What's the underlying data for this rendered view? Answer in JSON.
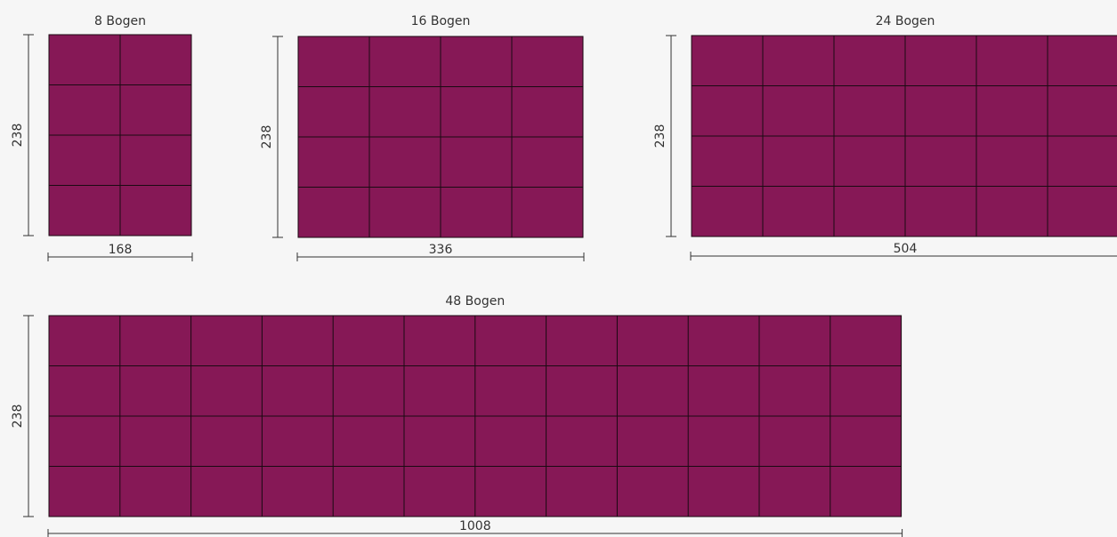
{
  "colors": {
    "fill": "#861856",
    "grid_line": "#1a0a12",
    "dimension_line": "#333333",
    "text": "#333333",
    "background": "#f6f6f6"
  },
  "panels": [
    {
      "title": "8 Bogen",
      "width_label": "168",
      "height_label": "238",
      "cols": 2,
      "rows": 4
    },
    {
      "title": "16 Bogen",
      "width_label": "336",
      "height_label": "238",
      "cols": 4,
      "rows": 4
    },
    {
      "title": "24 Bogen",
      "width_label": "504",
      "height_label": "238",
      "cols": 6,
      "rows": 4
    },
    {
      "title": "48 Bogen",
      "width_label": "1008",
      "height_label": "238",
      "cols": 12,
      "rows": 4
    }
  ]
}
